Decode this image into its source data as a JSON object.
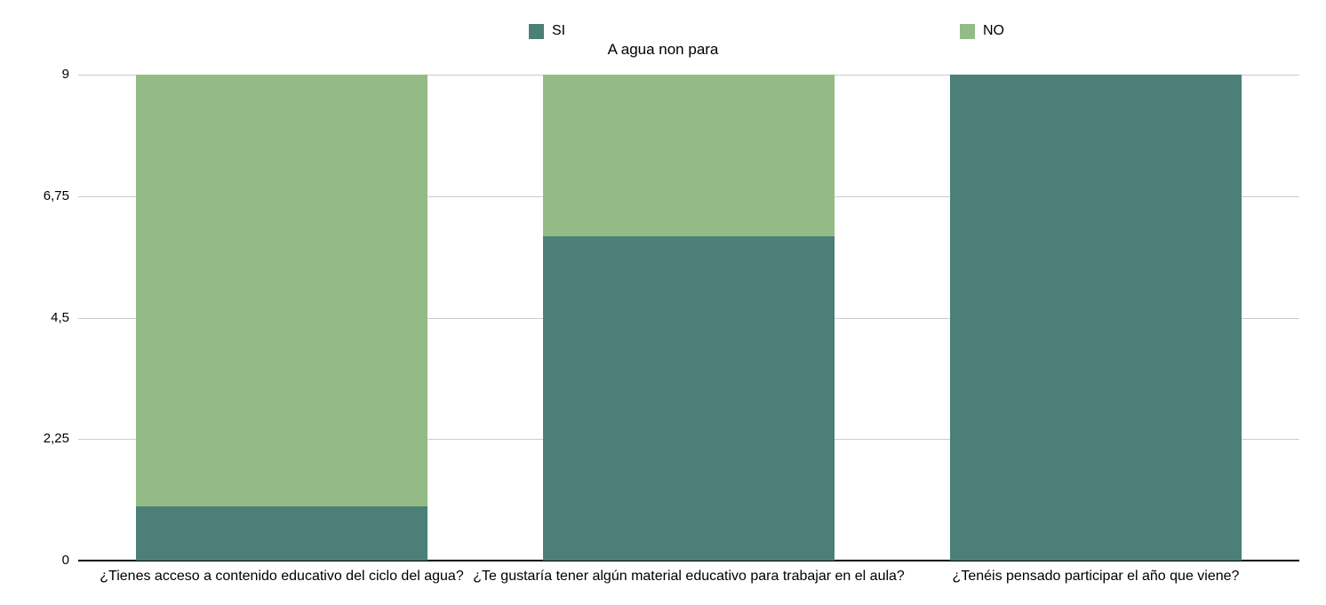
{
  "chart_data": {
    "type": "bar",
    "stacked": true,
    "title": "A agua non para",
    "categories": [
      "¿Tienes acceso a contenido educativo del ciclo del agua?",
      "¿Te gustaría tener algún material educativo para trabajar en el aula?",
      "¿Tenéis pensado participar el año que viene?"
    ],
    "series": [
      {
        "name": "SI",
        "color": "#4b7f78",
        "values": [
          1,
          6,
          9
        ]
      },
      {
        "name": "NO",
        "color": "#94bb85",
        "values": [
          8,
          3,
          0
        ]
      }
    ],
    "ylim": [
      0,
      9
    ],
    "y_ticks": [
      {
        "value": 0,
        "label": "0"
      },
      {
        "value": 2.25,
        "label": "2,25"
      },
      {
        "value": 4.5,
        "label": "4,5"
      },
      {
        "value": 6.75,
        "label": "6,75"
      },
      {
        "value": 9,
        "label": "9"
      }
    ],
    "grid": true,
    "legend_position": "top",
    "gridline_color": "#cccccc",
    "axis_color": "#000000"
  }
}
